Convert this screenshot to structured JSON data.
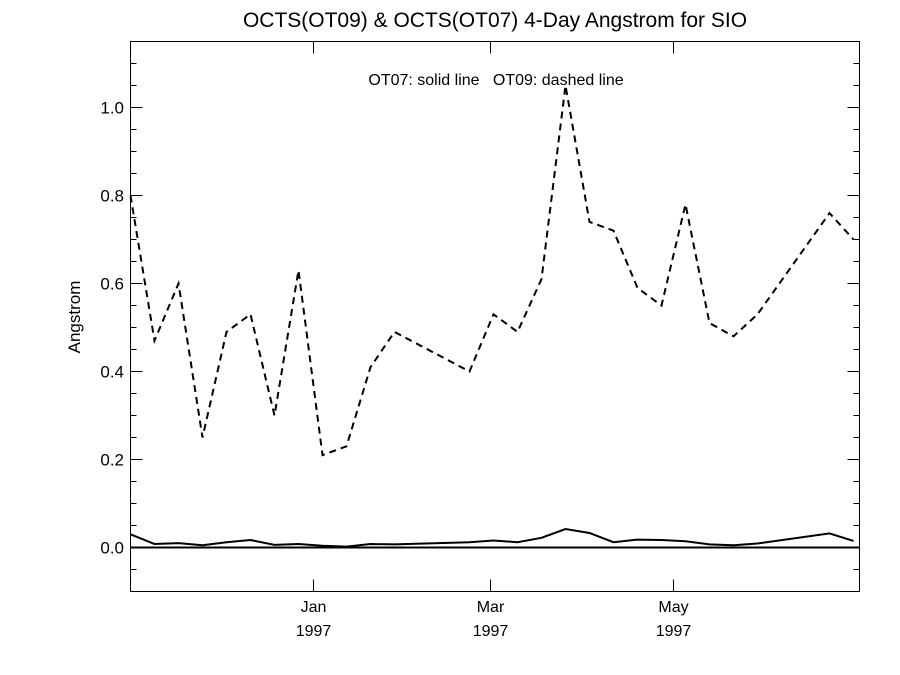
{
  "chart_data": {
    "type": "line",
    "title": "OCTS(OT09) & OCTS(OT07) 4-Day Angstrom for SIO",
    "annotation": "OT07: solid line   OT09: dashed line",
    "xlabel": "",
    "ylabel": "Angstrom",
    "x_axis": {
      "type": "date",
      "range": [
        "1996-11-01",
        "1997-07-02"
      ],
      "ticks": [
        {
          "date": "1997-01-01",
          "line1": "Jan",
          "line2": "1997"
        },
        {
          "date": "1997-03-01",
          "line1": "Mar",
          "line2": "1997"
        },
        {
          "date": "1997-05-01",
          "line1": "May",
          "line2": "1997"
        }
      ]
    },
    "y_axis": {
      "range": [
        -0.1,
        1.15
      ],
      "major_ticks": [
        0.0,
        0.2,
        0.4,
        0.6,
        0.8,
        1.0
      ],
      "tick_labels": [
        "0.0",
        "0.2",
        "0.4",
        "0.6",
        "0.8",
        "1.0"
      ],
      "minor_ticks": [
        -0.1,
        -0.05,
        0.05,
        0.1,
        0.15,
        0.25,
        0.3,
        0.35,
        0.45,
        0.5,
        0.55,
        0.65,
        0.7,
        0.75,
        0.85,
        0.9,
        0.95,
        1.05,
        1.1
      ]
    },
    "zero_line": 0,
    "series": [
      {
        "label": "OT09",
        "style": "dashed",
        "points": [
          [
            "1996-11-01",
            0.8
          ],
          [
            "1996-11-09",
            0.47
          ],
          [
            "1996-11-17",
            0.6
          ],
          [
            "1996-11-25",
            0.25
          ],
          [
            "1996-12-03",
            0.49
          ],
          [
            "1996-12-11",
            0.53
          ],
          [
            "1996-12-19",
            0.3
          ],
          [
            "1996-12-27",
            0.63
          ],
          [
            "1997-01-04",
            0.21
          ],
          [
            "1997-01-12",
            0.23
          ],
          [
            "1997-01-20",
            0.41
          ],
          [
            "1997-01-28",
            0.49
          ],
          [
            "1997-02-22",
            0.4
          ],
          [
            "1997-03-02",
            0.53
          ],
          [
            "1997-03-10",
            0.49
          ],
          [
            "1997-03-18",
            0.61
          ],
          [
            "1997-03-26",
            1.05
          ],
          [
            "1997-04-03",
            0.74
          ],
          [
            "1997-04-11",
            0.72
          ],
          [
            "1997-04-19",
            0.59
          ],
          [
            "1997-04-27",
            0.55
          ],
          [
            "1997-05-05",
            0.78
          ],
          [
            "1997-05-13",
            0.51
          ],
          [
            "1997-05-21",
            0.48
          ],
          [
            "1997-05-29",
            0.53
          ],
          [
            "1997-06-22",
            0.76
          ],
          [
            "1997-06-30",
            0.7
          ]
        ]
      },
      {
        "label": "OT07",
        "style": "solid",
        "points": [
          [
            "1996-11-01",
            0.03
          ],
          [
            "1996-11-09",
            0.008
          ],
          [
            "1996-11-17",
            0.01
          ],
          [
            "1996-11-25",
            0.005
          ],
          [
            "1996-12-03",
            0.012
          ],
          [
            "1996-12-11",
            0.017
          ],
          [
            "1996-12-19",
            0.006
          ],
          [
            "1996-12-27",
            0.008
          ],
          [
            "1997-01-04",
            0.004
          ],
          [
            "1997-01-12",
            0.002
          ],
          [
            "1997-01-20",
            0.008
          ],
          [
            "1997-01-28",
            0.007
          ],
          [
            "1997-02-22",
            0.012
          ],
          [
            "1997-03-02",
            0.016
          ],
          [
            "1997-03-10",
            0.012
          ],
          [
            "1997-03-18",
            0.022
          ],
          [
            "1997-03-26",
            0.042
          ],
          [
            "1997-04-03",
            0.033
          ],
          [
            "1997-04-11",
            0.012
          ],
          [
            "1997-04-19",
            0.018
          ],
          [
            "1997-04-27",
            0.017
          ],
          [
            "1997-05-05",
            0.014
          ],
          [
            "1997-05-13",
            0.007
          ],
          [
            "1997-05-21",
            0.005
          ],
          [
            "1997-05-29",
            0.009
          ],
          [
            "1997-06-22",
            0.032
          ],
          [
            "1997-06-30",
            0.015
          ]
        ]
      }
    ]
  }
}
